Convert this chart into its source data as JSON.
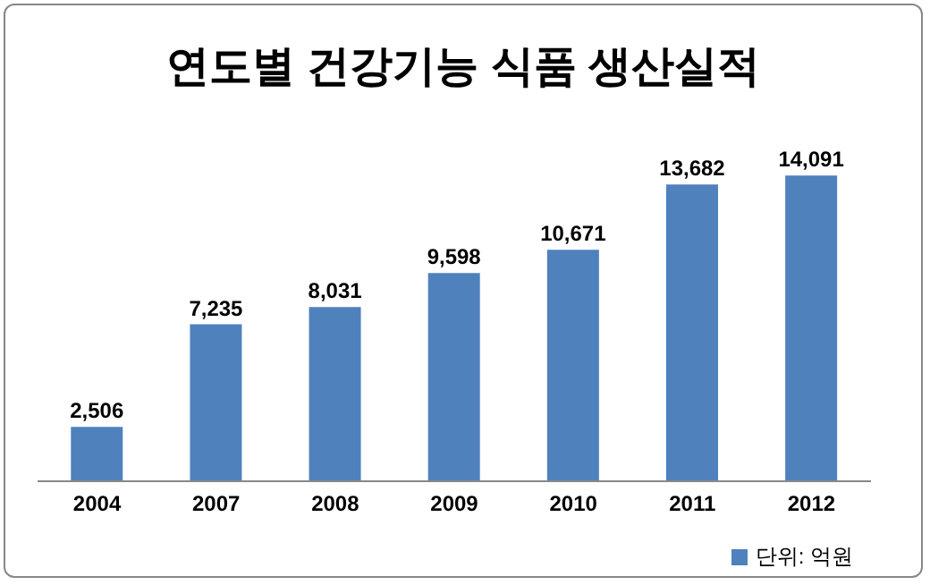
{
  "chart_data": {
    "type": "bar",
    "title": "연도별 건강기능 식품 생산실적",
    "categories": [
      "2004",
      "2007",
      "2008",
      "2009",
      "2010",
      "2011",
      "2012"
    ],
    "series": [
      {
        "name": "단위: 억원",
        "color": "#4f81bd",
        "values": [
          2506,
          7235,
          8031,
          9598,
          10671,
          13682,
          14091
        ],
        "value_labels": [
          "2,506",
          "7,235",
          "8,031",
          "9,598",
          "10,671",
          "13,682",
          "14,091"
        ]
      }
    ],
    "legend": "bottom right",
    "grid": false
  }
}
